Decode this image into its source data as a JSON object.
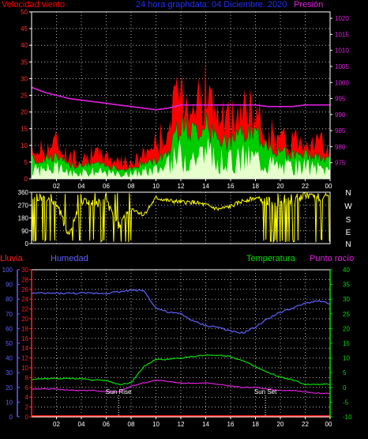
{
  "colors": {
    "background": "#000000",
    "frame": "#ffffff",
    "grid": "#ffffff",
    "wind_gust": "#ff0000",
    "wind_avg": "#00cc00",
    "wind_fill": "#e6ffcc",
    "pressure": "#e020e0",
    "direction": "#ffff00",
    "humidity": "#6060ff",
    "rain": "#ff2020",
    "temperature": "#00e000",
    "dew_point": "#e020e0",
    "sun_marker": "#ffffff"
  },
  "header_top": {
    "left": "Velocidad viento",
    "center": "24 hora graphdata: 04 Diciembre. 2020",
    "right": "Presión"
  },
  "header_bottom": {
    "rain": "Lluvia",
    "humidity": "Humedad",
    "temperature": "Temperatura",
    "dew_point": "Punto rocío"
  },
  "chart_data": [
    {
      "type": "line",
      "panel": "wind-pressure",
      "x_ticks": [
        "02",
        "04",
        "06",
        "08",
        "10",
        "12",
        "14",
        "16",
        "18",
        "20",
        "22",
        "00"
      ],
      "wind_axis": {
        "ticks": [
          0,
          5,
          10,
          15,
          20,
          25,
          30,
          35,
          40,
          45,
          50
        ],
        "ylim": [
          0,
          50
        ]
      },
      "pressure_axis": {
        "ticks": [
          975,
          980,
          985,
          990,
          995,
          1000,
          1005,
          1010,
          1015,
          1020
        ],
        "ylim": [
          970,
          1022
        ]
      },
      "hours": [
        0,
        1,
        2,
        3,
        4,
        5,
        6,
        7,
        8,
        9,
        10,
        11,
        12,
        13,
        14,
        15,
        16,
        17,
        18,
        19,
        20,
        21,
        22,
        23,
        24
      ],
      "series": [
        {
          "key": "gust",
          "values": [
            9,
            10,
            12,
            7,
            7,
            8,
            7,
            6,
            5,
            8,
            12,
            16,
            30,
            25,
            28,
            20,
            18,
            23,
            20,
            16,
            12,
            13,
            14,
            12,
            9
          ]
        },
        {
          "key": "avg",
          "values": [
            6,
            6,
            7,
            4,
            4,
            5,
            4,
            3,
            3,
            5,
            6,
            9,
            17,
            15,
            17,
            12,
            11,
            14,
            14,
            11,
            8,
            8,
            8,
            7,
            6
          ]
        },
        {
          "key": "pressure",
          "values": [
            998.5,
            997,
            996,
            995,
            994.5,
            994,
            993.5,
            993,
            992.5,
            992,
            991.5,
            992,
            993,
            993,
            993,
            993,
            993,
            993,
            993,
            992.5,
            992.5,
            992.5,
            993,
            993,
            993
          ]
        }
      ]
    },
    {
      "type": "line",
      "panel": "wind-direction",
      "right_labels": [
        "N",
        "W",
        "S",
        "E",
        "N"
      ],
      "direction_axis": {
        "ticks": [
          0,
          90,
          180,
          270,
          360
        ],
        "ylim": [
          0,
          360
        ]
      },
      "hours": [
        0,
        1,
        2,
        3,
        4,
        5,
        6,
        7,
        8,
        9,
        10,
        11,
        12,
        13,
        14,
        15,
        16,
        17,
        18,
        19,
        20,
        21,
        22,
        23,
        24
      ],
      "series": [
        {
          "key": "direction",
          "values": [
            300,
            330,
            280,
            60,
            300,
            280,
            290,
            120,
            250,
            200,
            320,
            300,
            290,
            290,
            270,
            240,
            260,
            300,
            320,
            300,
            280,
            300,
            340,
            320,
            330
          ]
        }
      ]
    },
    {
      "type": "line",
      "panel": "temp-humidity",
      "humidity_axis": {
        "ticks": [
          0,
          10,
          20,
          30,
          40,
          50,
          60,
          70,
          80,
          90,
          100
        ],
        "ylim": [
          0,
          100
        ]
      },
      "rain_axis": {
        "ticks": [
          0,
          2,
          4,
          6,
          8,
          10,
          12,
          14,
          16,
          18,
          20,
          22,
          24,
          26,
          28,
          30
        ],
        "ylim": [
          0,
          30
        ]
      },
      "temp_axis": {
        "ticks": [
          -10,
          -5,
          0,
          5,
          10,
          15,
          20,
          25,
          30,
          35,
          40
        ],
        "ylim": [
          -10,
          40
        ]
      },
      "sun_rise_label": "Sun Rise",
      "sun_set_label": "Sun Set",
      "sun_rise_hour": 7,
      "sun_set_hour": 18.8,
      "hours": [
        0,
        1,
        2,
        3,
        4,
        5,
        6,
        7,
        8,
        9,
        10,
        11,
        12,
        13,
        14,
        15,
        16,
        17,
        18,
        19,
        20,
        21,
        22,
        23,
        24
      ],
      "series": [
        {
          "key": "humidity",
          "values": [
            84,
            84,
            84,
            84,
            84,
            84,
            84,
            85,
            86,
            86,
            74,
            71,
            70,
            65,
            62,
            61,
            58,
            57,
            61,
            67,
            71,
            74,
            77,
            79,
            77
          ]
        },
        {
          "key": "rain",
          "values": [
            0,
            0,
            0,
            0,
            0,
            0,
            0,
            0,
            0,
            0,
            0,
            0,
            0,
            0,
            0,
            0,
            0,
            0,
            0,
            0,
            0,
            0,
            0,
            0,
            0
          ]
        },
        {
          "key": "temperature",
          "values": [
            2.5,
            3,
            3,
            3,
            3,
            2.5,
            2.5,
            1,
            1.5,
            7,
            9.5,
            9.5,
            10,
            10.5,
            11,
            11,
            10.5,
            9,
            7,
            5,
            3.5,
            2.5,
            1,
            1,
            1
          ]
        },
        {
          "key": "dew_point",
          "values": [
            -0.5,
            -0.5,
            -0.5,
            -1,
            -1,
            -1,
            -1.5,
            -1.5,
            0.5,
            1.5,
            2.5,
            2,
            1.5,
            1.5,
            1.5,
            1,
            0.5,
            0,
            0,
            -0.5,
            -1,
            -1,
            -1.5,
            -2,
            -2
          ]
        }
      ]
    }
  ]
}
